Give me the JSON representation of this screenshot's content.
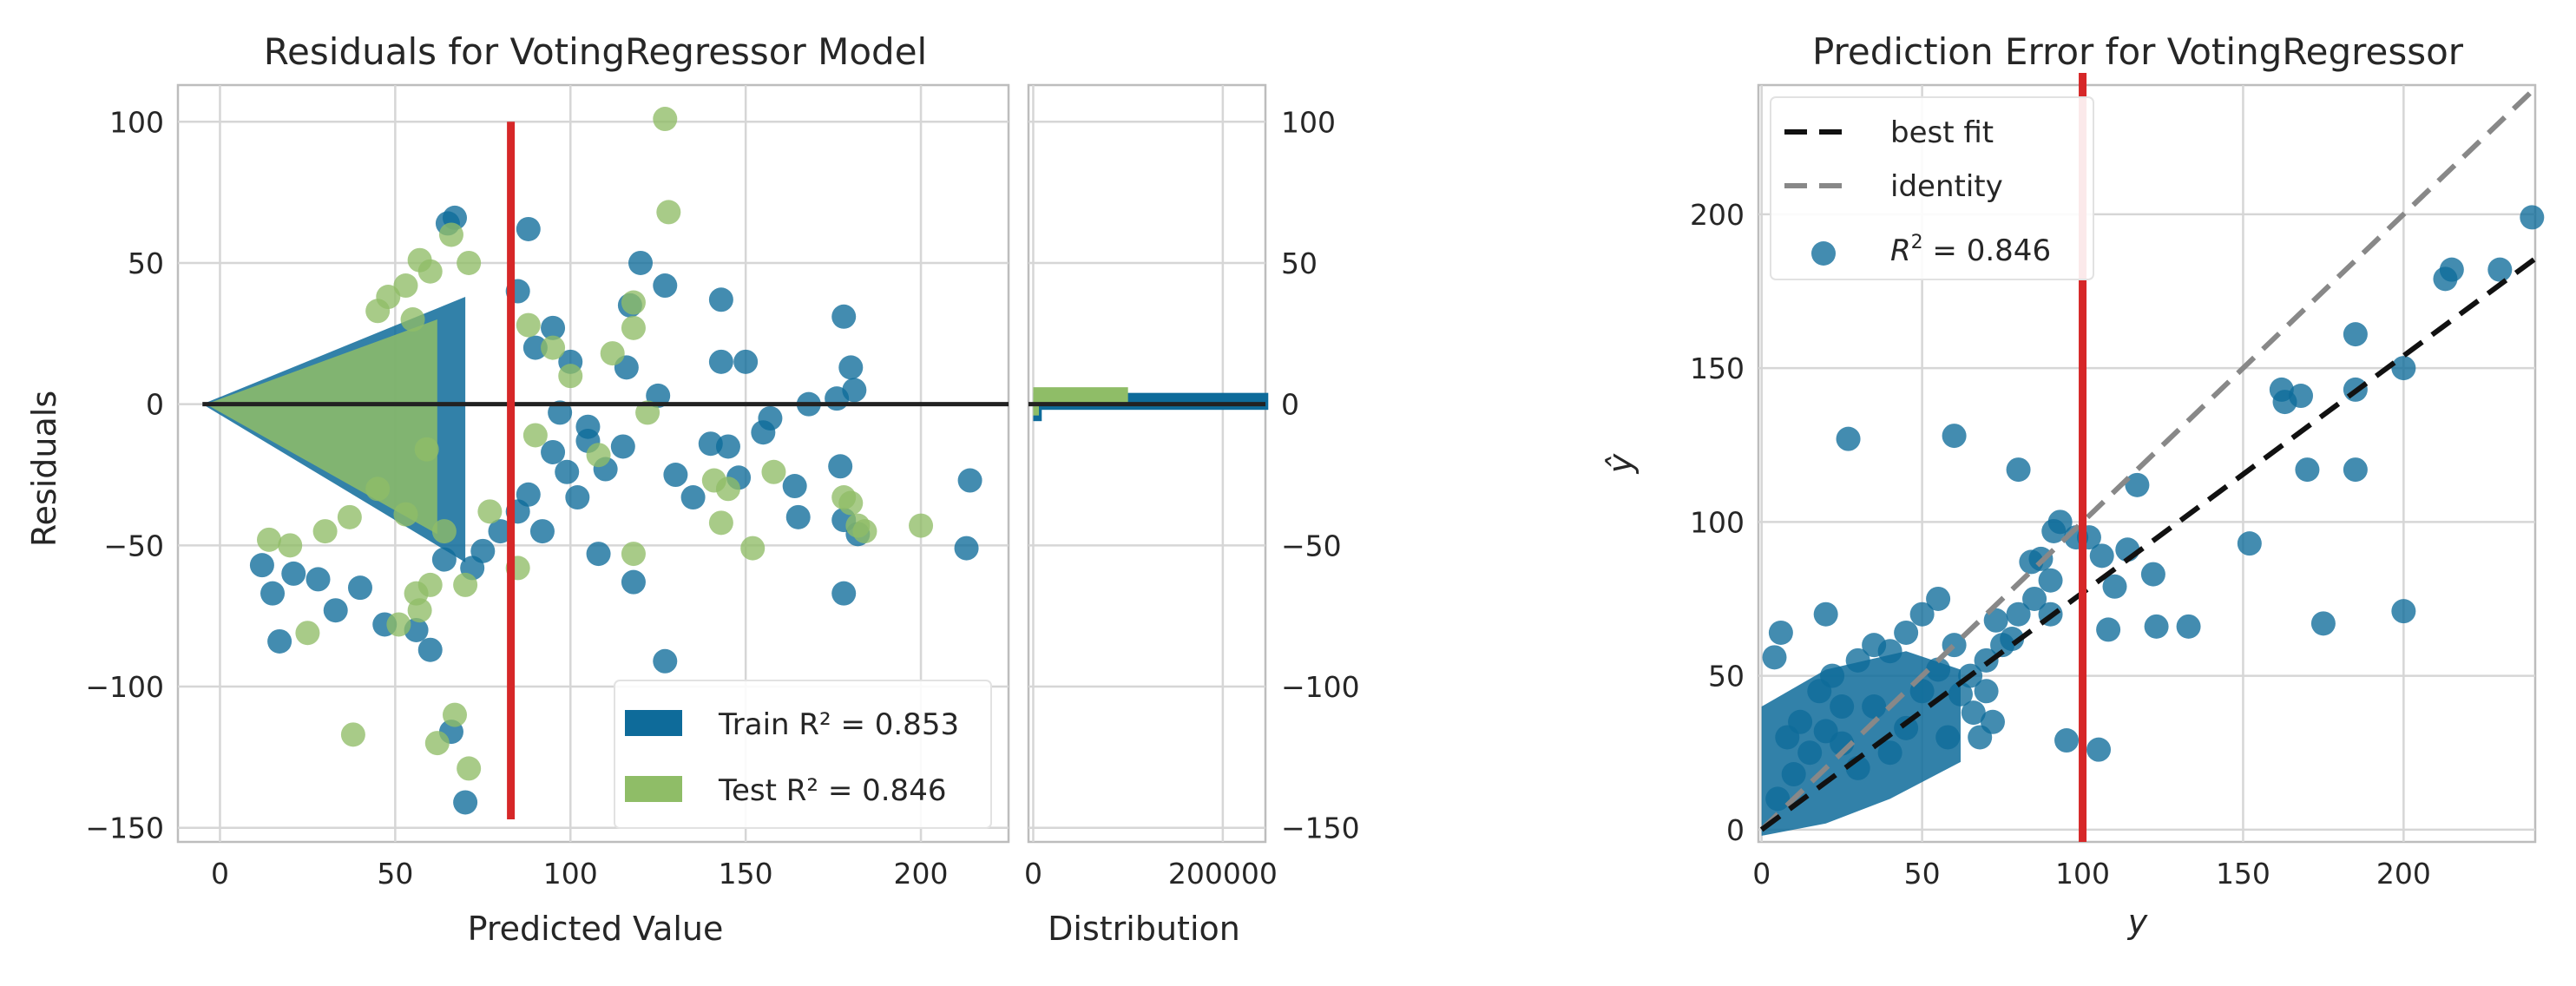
{
  "colors": {
    "train": "#0e6b9a",
    "test": "#8fbd67",
    "marker_line": "#d62728",
    "zero_line": "#222222",
    "best_fit": "#111111",
    "identity": "#888888"
  },
  "chart_data": [
    {
      "type": "scatter",
      "title": "Residuals for VotingRegressor Model",
      "xlabel": "Predicted Value",
      "ylabel": "Residuals",
      "xlim": [
        -12,
        225
      ],
      "ylim": [
        -155,
        113
      ],
      "xticks": [
        0,
        50,
        100,
        150,
        200
      ],
      "yticks": [
        100,
        50,
        0,
        -50,
        -100,
        -150
      ],
      "grid": true,
      "legend_position": "bottom-right",
      "vertical_marker_x": 83,
      "zero_line_y": 0,
      "series": [
        {
          "name": "Train",
          "r2_label": "Train $R^2 = 0.853$",
          "r2_text": "Train R² = 0.853",
          "points": [
            [
              70,
              -141
            ],
            [
              127,
              -91
            ],
            [
              66,
              -116
            ],
            [
              88,
              62
            ],
            [
              67,
              66
            ],
            [
              65,
              64
            ],
            [
              120,
              50
            ],
            [
              127,
              42
            ],
            [
              143,
              37
            ],
            [
              85,
              40
            ],
            [
              116,
              13
            ],
            [
              117,
              35
            ],
            [
              108,
              -53
            ],
            [
              118,
              -63
            ],
            [
              150,
              15
            ],
            [
              143,
              15
            ],
            [
              140,
              -14
            ],
            [
              145,
              -15
            ],
            [
              148,
              -26
            ],
            [
              155,
              -10
            ],
            [
              157,
              -5
            ],
            [
              168,
              0
            ],
            [
              176,
              2
            ],
            [
              178,
              31
            ],
            [
              180,
              13
            ],
            [
              181,
              5
            ],
            [
              177,
              -22
            ],
            [
              178,
              -41
            ],
            [
              182,
              -46
            ],
            [
              178,
              -67
            ],
            [
              214,
              -27
            ],
            [
              213,
              -51
            ],
            [
              164,
              -29
            ],
            [
              165,
              -40
            ],
            [
              105,
              -13
            ],
            [
              95,
              -17
            ],
            [
              97,
              -3
            ],
            [
              99,
              -24
            ],
            [
              102,
              -33
            ],
            [
              110,
              -23
            ],
            [
              115,
              -15
            ],
            [
              125,
              3
            ],
            [
              135,
              -33
            ],
            [
              95,
              27
            ],
            [
              100,
              15
            ],
            [
              90,
              20
            ],
            [
              60,
              -87
            ],
            [
              56,
              -80
            ],
            [
              47,
              -78
            ],
            [
              33,
              -73
            ],
            [
              28,
              -62
            ],
            [
              21,
              -60
            ],
            [
              17,
              -84
            ],
            [
              15,
              -67
            ],
            [
              12,
              -57
            ],
            [
              64,
              -55
            ],
            [
              72,
              -58
            ],
            [
              75,
              -52
            ],
            [
              80,
              -45
            ],
            [
              85,
              -38
            ],
            [
              88,
              -32
            ],
            [
              130,
              -25
            ],
            [
              105,
              -8
            ],
            [
              92,
              -45
            ],
            [
              40,
              -65
            ]
          ]
        },
        {
          "name": "Test",
          "r2_label": "Test $R^2 = 0.846$",
          "r2_text": "Test R² = 0.846",
          "points": [
            [
              127,
              101
            ],
            [
              128,
              68
            ],
            [
              71,
              50
            ],
            [
              88,
              28
            ],
            [
              118,
              36
            ],
            [
              118,
              27
            ],
            [
              71,
              -129
            ],
            [
              67,
              -110
            ],
            [
              62,
              -120
            ],
            [
              38,
              -117
            ],
            [
              25,
              -81
            ],
            [
              51,
              -78
            ],
            [
              57,
              -73
            ],
            [
              56,
              -67
            ],
            [
              70,
              -64
            ],
            [
              118,
              -53
            ],
            [
              143,
              -42
            ],
            [
              152,
              -51
            ],
            [
              158,
              -24
            ],
            [
              178,
              -33
            ],
            [
              180,
              -35
            ],
            [
              182,
              -43
            ],
            [
              184,
              -45
            ],
            [
              200,
              -43
            ],
            [
              141,
              -27
            ],
            [
              145,
              -30
            ],
            [
              122,
              -3
            ],
            [
              108,
              -18
            ],
            [
              90,
              -11
            ],
            [
              85,
              -58
            ],
            [
              77,
              -38
            ],
            [
              64,
              -45
            ],
            [
              60,
              -64
            ],
            [
              53,
              -39
            ],
            [
              45,
              -30
            ],
            [
              37,
              -40
            ],
            [
              30,
              -45
            ],
            [
              20,
              -50
            ],
            [
              14,
              -48
            ],
            [
              59,
              -16
            ],
            [
              55,
              30
            ],
            [
              57,
              51
            ],
            [
              60,
              47
            ],
            [
              66,
              60
            ],
            [
              53,
              42
            ],
            [
              48,
              38
            ],
            [
              45,
              33
            ],
            [
              100,
              10
            ],
            [
              112,
              18
            ],
            [
              95,
              20
            ]
          ]
        }
      ]
    },
    {
      "type": "bar",
      "title": "",
      "xlabel": "Distribution",
      "ylabel": "",
      "xlim": [
        -5000,
        245000
      ],
      "ylim": [
        -155,
        113
      ],
      "xticks": [
        0,
        200000
      ],
      "xtick_labels": [
        "0",
        "200000"
      ],
      "yticks": [
        100,
        50,
        0,
        -50,
        -100,
        -150
      ],
      "grid": true,
      "series": [
        {
          "name": "Train",
          "bins": [
            [
              -2,
              4,
              248000
            ],
            [
              -6,
              0,
              9000
            ]
          ]
        },
        {
          "name": "Test",
          "bins": [
            [
              0,
              6,
              100000
            ],
            [
              -4,
              0,
              6000
            ]
          ]
        }
      ]
    },
    {
      "type": "scatter",
      "title": "Prediction Error for VotingRegressor",
      "xlabel": "y",
      "ylabel": "ŷ",
      "xlim": [
        -1,
        241
      ],
      "ylim": [
        -4,
        242
      ],
      "xticks": [
        0,
        50,
        100,
        150,
        200
      ],
      "yticks": [
        0,
        50,
        100,
        150,
        200
      ],
      "grid": true,
      "legend_position": "top-left",
      "vertical_marker_x": 100,
      "r2": 0.846,
      "legend": [
        {
          "name": "best fit",
          "style": "dashed-black"
        },
        {
          "name": "identity",
          "style": "dashed-gray"
        },
        {
          "name": "R2 = 0.846",
          "label": "$R^2 = 0.846$",
          "style": "point"
        }
      ],
      "best_fit": {
        "slope": 0.77,
        "intercept": 0
      },
      "points": [
        [
          240,
          199
        ],
        [
          230,
          182
        ],
        [
          215,
          182
        ],
        [
          213,
          179
        ],
        [
          200,
          150
        ],
        [
          200,
          71
        ],
        [
          185,
          161
        ],
        [
          185,
          143
        ],
        [
          185,
          117
        ],
        [
          175,
          67
        ],
        [
          170,
          117
        ],
        [
          168,
          141
        ],
        [
          163,
          139
        ],
        [
          162,
          143
        ],
        [
          152,
          93
        ],
        [
          133,
          66
        ],
        [
          123,
          66
        ],
        [
          122,
          83
        ],
        [
          117,
          112
        ],
        [
          114,
          91
        ],
        [
          110,
          79
        ],
        [
          108,
          65
        ],
        [
          106,
          89
        ],
        [
          105,
          26
        ],
        [
          102,
          95
        ],
        [
          98,
          95
        ],
        [
          95,
          29
        ],
        [
          93,
          100
        ],
        [
          91,
          97
        ],
        [
          87,
          88
        ],
        [
          90,
          81
        ],
        [
          84,
          87
        ],
        [
          80,
          117
        ],
        [
          73,
          68
        ],
        [
          60,
          128
        ],
        [
          27,
          127
        ],
        [
          4,
          56
        ],
        [
          6,
          64
        ],
        [
          20,
          70
        ],
        [
          55,
          75
        ],
        [
          50,
          70
        ],
        [
          45,
          64
        ],
        [
          40,
          58
        ],
        [
          35,
          60
        ],
        [
          30,
          55
        ],
        [
          25,
          40
        ],
        [
          20,
          32
        ],
        [
          15,
          25
        ],
        [
          10,
          18
        ],
        [
          5,
          10
        ],
        [
          60,
          60
        ],
        [
          65,
          50
        ],
        [
          70,
          45
        ],
        [
          75,
          60
        ],
        [
          80,
          70
        ],
        [
          85,
          75
        ],
        [
          66,
          38
        ],
        [
          72,
          35
        ],
        [
          58,
          30
        ],
        [
          40,
          25
        ],
        [
          30,
          20
        ],
        [
          50,
          45
        ],
        [
          55,
          52
        ],
        [
          90,
          70
        ],
        [
          78,
          62
        ],
        [
          62,
          44
        ],
        [
          45,
          33
        ],
        [
          35,
          40
        ],
        [
          25,
          28
        ],
        [
          12,
          35
        ],
        [
          8,
          30
        ],
        [
          18,
          45
        ],
        [
          22,
          50
        ],
        [
          70,
          55
        ],
        [
          68,
          30
        ]
      ]
    }
  ]
}
